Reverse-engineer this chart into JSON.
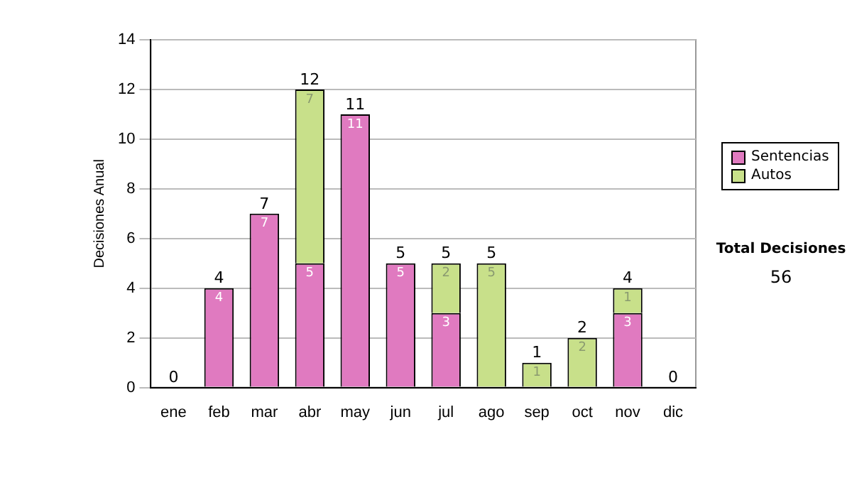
{
  "chart_data": {
    "type": "bar",
    "ylabel": "Decisiones Anual",
    "stacked": true,
    "grid": "y",
    "legend": "right",
    "categories": [
      "ene",
      "feb",
      "mar",
      "abr",
      "may",
      "jun",
      "jul",
      "ago",
      "sep",
      "oct",
      "nov",
      "dic"
    ],
    "ylim": [
      0,
      14
    ],
    "yticks": [
      0,
      2,
      4,
      6,
      8,
      10,
      12,
      14
    ],
    "series": [
      {
        "name": "Sentencias",
        "color": "#e07ac0",
        "values": [
          0,
          4,
          7,
          5,
          11,
          5,
          3,
          0,
          0,
          0,
          3,
          0
        ],
        "value_labels": [
          null,
          "4",
          "7",
          "5",
          "11",
          "5",
          "3",
          null,
          null,
          null,
          "3",
          null
        ]
      },
      {
        "name": "Autos",
        "color": "#c8e08a",
        "values": [
          0,
          0,
          0,
          7,
          0,
          0,
          2,
          5,
          1,
          2,
          1,
          0
        ],
        "value_labels": [
          null,
          null,
          null,
          "7",
          null,
          null,
          "2",
          "5",
          "1",
          "2",
          "1",
          null
        ]
      }
    ],
    "totals": [
      "0",
      "4",
      "7",
      "12",
      "11",
      "5",
      "5",
      "5",
      "1",
      "2",
      "4",
      "0"
    ],
    "annotations": [
      "Total Decisiones",
      "56"
    ]
  }
}
